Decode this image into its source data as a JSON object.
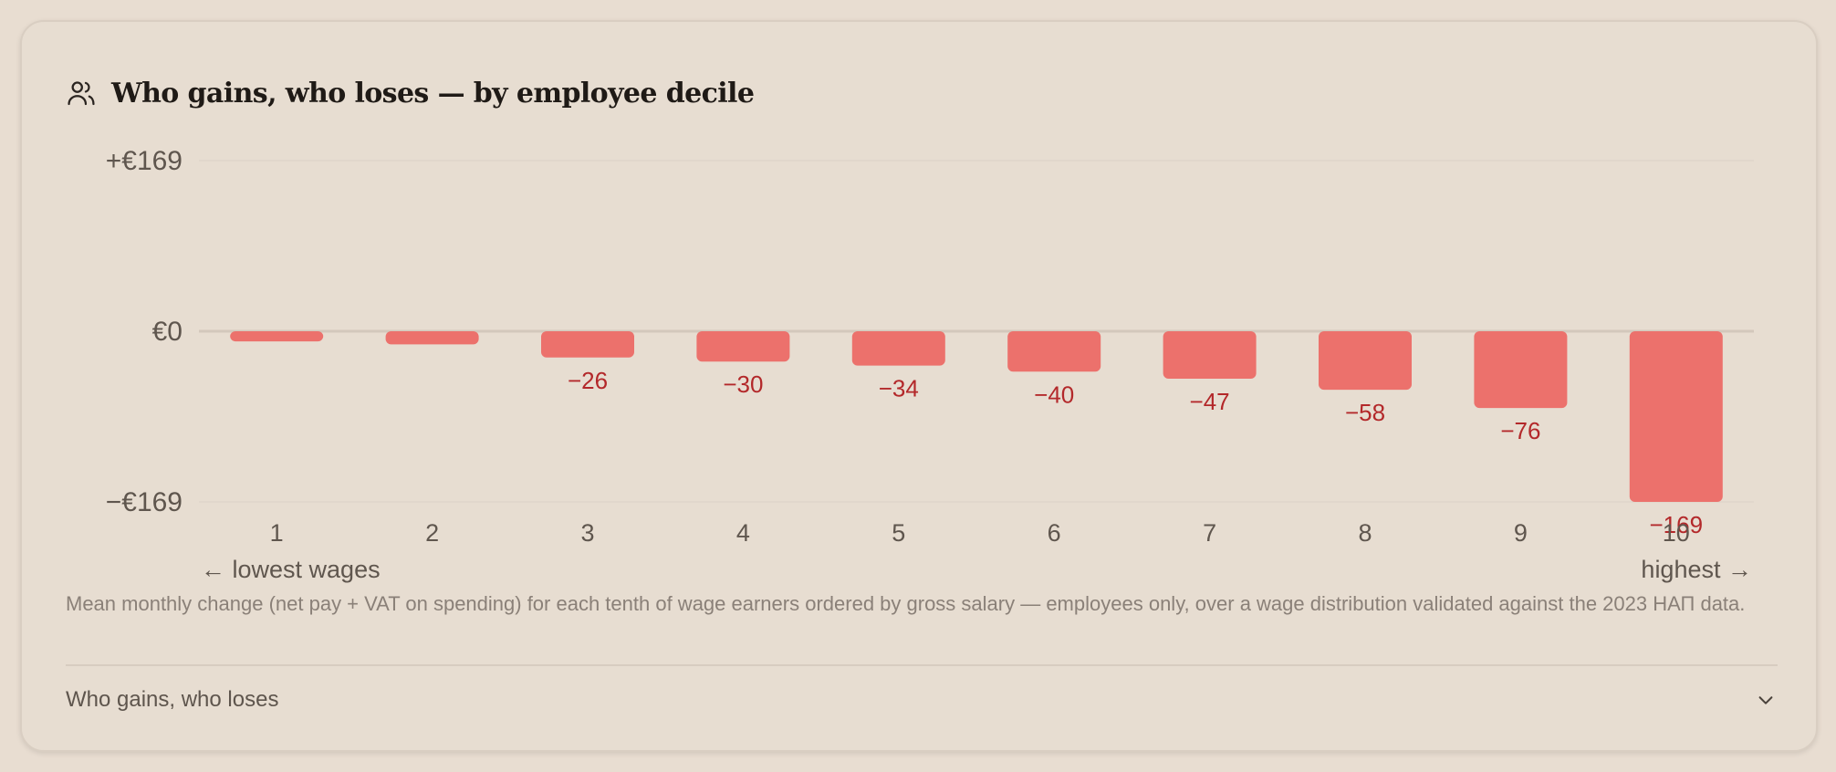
{
  "card": {
    "title": "Who gains, who loses — by employee decile",
    "title_icon": "users-icon",
    "caption": "Mean monthly change (net pay + VAT on spending) for each tenth of wage earners ordered by gross salary — employees only, over a wage distribution validated against the 2023 НАП data.",
    "accordion_label": "Who gains, who loses",
    "accordion_icon": "chevron-down-icon"
  },
  "chart_data": {
    "type": "bar",
    "title": "Who gains, who loses — by employee decile",
    "categories": [
      "1",
      "2",
      "3",
      "4",
      "5",
      "6",
      "7",
      "8",
      "9",
      "10"
    ],
    "values": [
      -10,
      -13,
      -26,
      -30,
      -34,
      -40,
      -47,
      -58,
      -76,
      -169
    ],
    "data_labels": [
      "",
      "",
      "−26",
      "−30",
      "−34",
      "−40",
      "−47",
      "−58",
      "−76",
      "−169"
    ],
    "y_ticks": [
      {
        "value": 169,
        "label": "+€169"
      },
      {
        "value": 0,
        "label": "€0"
      },
      {
        "value": -169,
        "label": "−€169"
      }
    ],
    "ylim": [
      -169,
      169
    ],
    "x_left_note": "← lowest wages",
    "x_right_note": "highest →",
    "grid": true,
    "bar_color": "#ec716c",
    "label_color": "#b3282a"
  }
}
